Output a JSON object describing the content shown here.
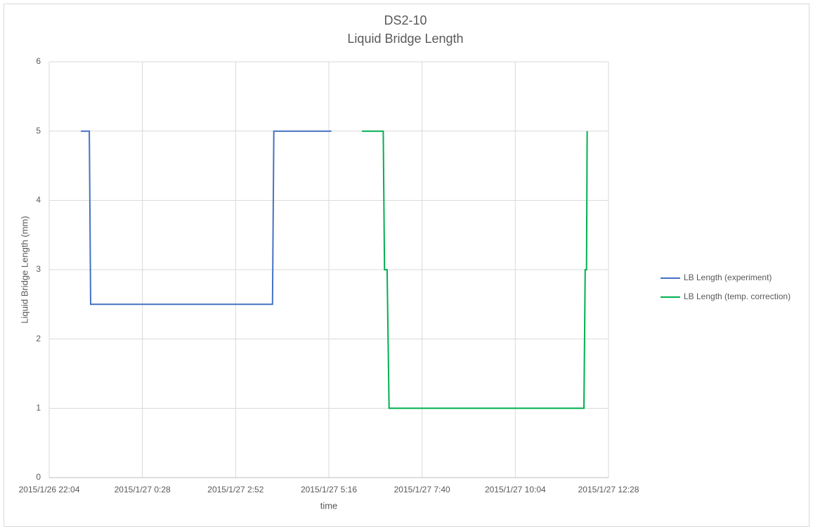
{
  "chart_data": {
    "type": "line",
    "title": "DS2-10",
    "subtitle": "Liquid Bridge Length",
    "x_label": "time",
    "y_label": "Liquid Bridge Length (mm)",
    "xlim": [
      "2015/1/26 22:04",
      "2015/1/27 12:28"
    ],
    "xticks": [
      "2015/1/26 22:04",
      "2015/1/27 0:28",
      "2015/1/27 2:52",
      "2015/1/27 5:16",
      "2015/1/27 7:40",
      "2015/1/27 10:04",
      "2015/1/27 12:28"
    ],
    "ylim": [
      0,
      6
    ],
    "yticks": [
      0,
      1,
      2,
      3,
      4,
      5,
      6
    ],
    "grid": true,
    "legend": "right",
    "series": [
      {
        "name": "LB Length (experiment)",
        "color": "#4472c4",
        "x": [
          "2015/1/26 22:53",
          "2015/1/26 23:06",
          "2015/1/26 23:08",
          "2015/1/27 3:49",
          "2015/1/27 3:51",
          "2015/1/27 5:20"
        ],
        "values": [
          5,
          5,
          2.5,
          2.5,
          5,
          5
        ]
      },
      {
        "name": "LB Length (temp. correction)",
        "color": "#00b050",
        "x": [
          "2015/1/27 6:07",
          "2015/1/27 6:40",
          "2015/1/27 6:42",
          "2015/1/27 6:46",
          "2015/1/27 6:49",
          "2015/1/27 11:50",
          "2015/1/27 11:52",
          "2015/1/27 11:54",
          "2015/1/27 11:55"
        ],
        "values": [
          5,
          5,
          3,
          3,
          1,
          1,
          3,
          3,
          5
        ]
      }
    ]
  }
}
